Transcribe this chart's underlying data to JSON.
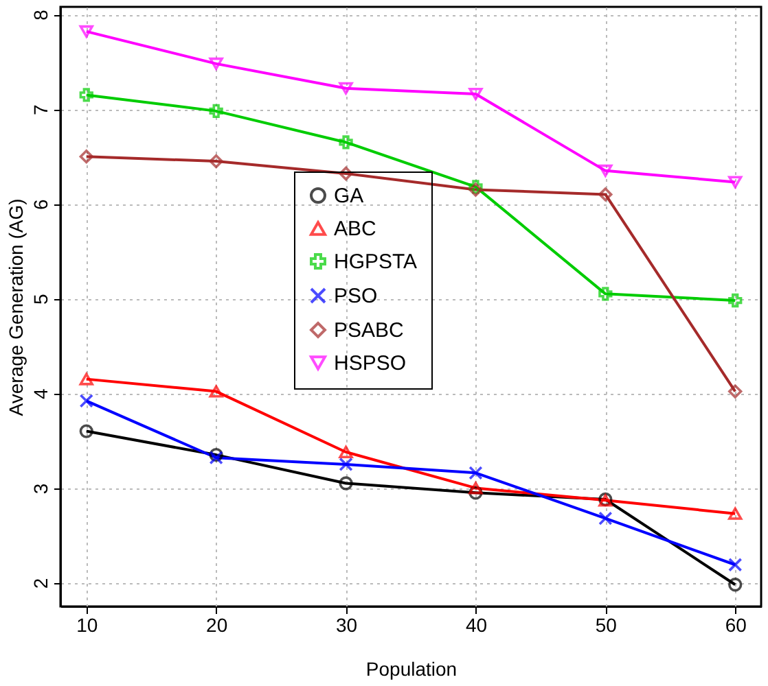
{
  "chart_data": {
    "type": "line",
    "xlabel": "Population",
    "ylabel": "Average Generation (AG)",
    "x": [
      10,
      20,
      30,
      40,
      50,
      60
    ],
    "series": [
      {
        "name": "GA",
        "color": "#000000",
        "marker": "circle",
        "values": [
          3.6,
          3.35,
          3.05,
          2.95,
          2.88,
          1.98
        ]
      },
      {
        "name": "ABC",
        "color": "#ff0000",
        "marker": "triangle",
        "values": [
          4.15,
          4.02,
          3.38,
          3.0,
          2.87,
          2.73
        ]
      },
      {
        "name": "HGPSTA",
        "color": "#00cc00",
        "marker": "cross",
        "values": [
          7.15,
          6.98,
          6.65,
          6.18,
          5.05,
          4.98
        ]
      },
      {
        "name": "PSO",
        "color": "#0000ff",
        "marker": "x",
        "values": [
          3.92,
          3.32,
          3.25,
          3.16,
          2.68,
          2.19
        ]
      },
      {
        "name": "PSABC",
        "color": "#a52a2a",
        "marker": "diamond",
        "values": [
          6.5,
          6.45,
          6.32,
          6.15,
          6.1,
          4.02
        ]
      },
      {
        "name": "HSPSO",
        "color": "#ff00ff",
        "marker": "triangle-down",
        "values": [
          7.82,
          7.48,
          7.22,
          7.16,
          6.35,
          6.23
        ]
      }
    ],
    "xlim": [
      8,
      62
    ],
    "xticks": [
      10,
      20,
      30,
      40,
      50,
      60
    ],
    "ylim": [
      1.75,
      8.08
    ],
    "yticks": [
      2,
      3,
      4,
      5,
      6,
      7,
      8
    ],
    "grid": true,
    "legend": "center",
    "line_style": "solid"
  }
}
